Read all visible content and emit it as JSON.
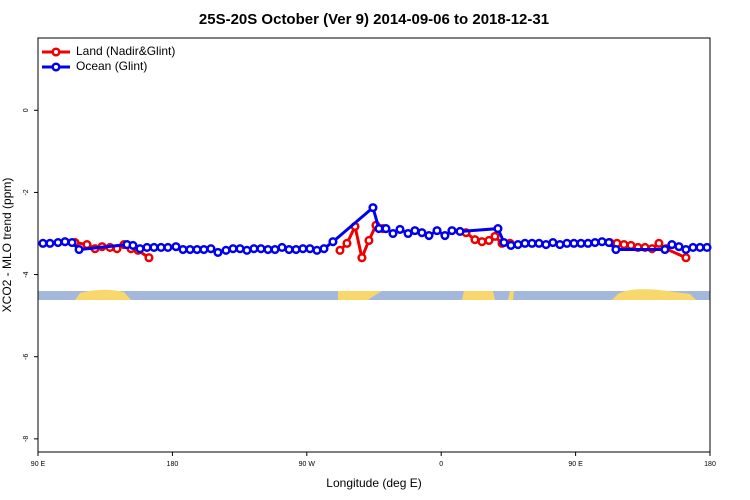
{
  "chart_data": {
    "type": "line",
    "title": "25S-20S October (Ver 9)   2014-09-06 to 2018-12-31",
    "x_label": "Longitude (deg E)",
    "y_label": "XCO2 - MLO trend (ppm)",
    "xlim": [
      90,
      540
    ],
    "ylim": [
      -8.32,
      1.76
    ],
    "xticks": [
      {
        "value": 90,
        "label": "90 E"
      },
      180,
      {
        "value": 270,
        "label": "90 W"
      },
      {
        "value": 360,
        "label": "0"
      },
      {
        "value": 450,
        "label": "90 E"
      },
      {
        "value": 540,
        "label": "180"
      }
    ],
    "yticks": [
      0,
      -2,
      -4,
      -6,
      -8
    ],
    "legend": "top-left",
    "series": [
      {
        "name": "Land (Nadir&Glint)",
        "color": "#ee0000",
        "x": [
          114.8,
          122.8,
          128.2,
          132.9,
          138.2,
          142.9,
          147.6,
          152.3,
          157.0,
          164.3,
          null,
          292.2,
          296.9,
          302.3,
          306.9,
          311.6,
          316.3,
          321.0,
          null,
          376.6,
          382.6,
          387.3,
          392.0,
          396.0,
          400.7,
          406.1,
          null,
          473.0,
          477.7,
          482.4,
          487.1,
          491.8,
          496.5,
          501.2,
          505.8,
          510.5,
          523.9
        ],
        "values": [
          -3.22,
          -3.27,
          -3.37,
          -3.32,
          -3.34,
          -3.37,
          -3.27,
          -3.37,
          -3.41,
          -3.59,
          null,
          -3.41,
          -3.24,
          -2.83,
          -3.59,
          -3.17,
          -2.8,
          -2.88,
          null,
          -2.98,
          -3.15,
          -3.2,
          -3.17,
          -3.07,
          -3.24,
          -3.24,
          null,
          -3.22,
          -3.24,
          -3.27,
          -3.29,
          -3.34,
          -3.34,
          -3.37,
          -3.24,
          -3.37,
          -3.59
        ]
      },
      {
        "name": "Ocean (Glint)",
        "color": "#0000ee",
        "x": [
          93.3,
          98.0,
          103.4,
          108.1,
          112.8,
          117.5,
          149.6,
          153.6,
          158.3,
          163.0,
          167.7,
          172.4,
          177.0,
          182.4,
          187.1,
          191.8,
          196.5,
          201.1,
          205.8,
          210.5,
          215.9,
          220.6,
          225.3,
          229.9,
          234.6,
          239.3,
          244.0,
          248.7,
          253.4,
          258.1,
          262.8,
          267.4,
          272.1,
          276.8,
          281.5,
          287.5,
          314.3,
          318.3,
          323.0,
          327.7,
          332.4,
          337.8,
          342.4,
          347.1,
          351.8,
          357.2,
          362.5,
          367.2,
          372.6,
          398.0,
          402.0,
          406.7,
          411.4,
          416.1,
          420.8,
          425.5,
          430.2,
          434.8,
          439.5,
          444.2,
          448.9,
          453.6,
          458.3,
          463.0,
          467.7,
          472.3,
          477.0,
          509.8,
          514.5,
          519.2,
          523.9,
          528.6,
          533.3,
          538.0
        ],
        "values": [
          -3.24,
          -3.24,
          -3.22,
          -3.2,
          -3.22,
          -3.39,
          -3.27,
          -3.29,
          -3.37,
          -3.34,
          -3.34,
          -3.34,
          -3.34,
          -3.32,
          -3.39,
          -3.39,
          -3.39,
          -3.39,
          -3.37,
          -3.46,
          -3.41,
          -3.37,
          -3.37,
          -3.41,
          -3.37,
          -3.37,
          -3.39,
          -3.39,
          -3.34,
          -3.39,
          -3.39,
          -3.37,
          -3.37,
          -3.41,
          -3.37,
          -3.2,
          -2.37,
          -2.88,
          -2.88,
          -3.0,
          -2.9,
          -3.0,
          -2.93,
          -2.98,
          -3.05,
          -2.93,
          -3.05,
          -2.93,
          -2.95,
          -2.88,
          -3.22,
          -3.29,
          -3.27,
          -3.24,
          -3.24,
          -3.24,
          -3.27,
          -3.22,
          -3.27,
          -3.24,
          -3.24,
          -3.24,
          -3.24,
          -3.22,
          -3.2,
          -3.22,
          -3.39,
          -3.39,
          -3.27,
          -3.32,
          -3.39,
          -3.34,
          -3.34,
          -3.34
        ]
      }
    ]
  }
}
